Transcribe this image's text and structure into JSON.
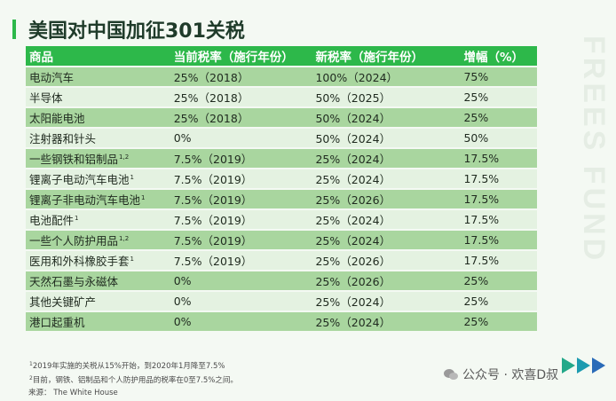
{
  "title": "美国对中国加征301关税",
  "watermark": "FREES FUND",
  "table": {
    "headers": [
      "商品",
      "当前税率（施行年份）",
      "新税率（施行年份）",
      "增幅（%）"
    ],
    "rows": [
      {
        "item": "电动汽车",
        "sup": "",
        "current": "25%（2018）",
        "new": "100%（2024）",
        "increase": "75%"
      },
      {
        "item": "半导体",
        "sup": "",
        "current": "25%（2018）",
        "new": "50%（2025）",
        "increase": "25%"
      },
      {
        "item": "太阳能电池",
        "sup": "",
        "current": "25%（2018）",
        "new": "50%（2024）",
        "increase": "25%"
      },
      {
        "item": "注射器和针头",
        "sup": "",
        "current": "0%",
        "new": "50%（2024）",
        "increase": "50%"
      },
      {
        "item": "一些钢铁和铝制品",
        "sup": "1,2",
        "current": "7.5%（2019）",
        "new": "25%（2024）",
        "increase": "17.5%"
      },
      {
        "item": "锂离子电动汽车电池",
        "sup": "1",
        "current": "7.5%（2019）",
        "new": "25%（2024）",
        "increase": "17.5%"
      },
      {
        "item": "锂离子非电动汽车电池",
        "sup": "1",
        "current": "7.5%（2019）",
        "new": "25%（2026）",
        "increase": "17.5%"
      },
      {
        "item": "电池配件",
        "sup": "1",
        "current": "7.5%（2019）",
        "new": "25%（2024）",
        "increase": "17.5%"
      },
      {
        "item": "一些个人防护用品",
        "sup": "1,2",
        "current": "7.5%（2019）",
        "new": "25%（2024）",
        "increase": "17.5%"
      },
      {
        "item": "医用和外科橡胶手套",
        "sup": "1",
        "current": "7.5%（2019）",
        "new": "25%（2026）",
        "increase": "17.5%"
      },
      {
        "item": "天然石墨与永磁体",
        "sup": "",
        "current": "0%",
        "new": "25%（2026）",
        "increase": "25%"
      },
      {
        "item": "其他关键矿产",
        "sup": "",
        "current": "0%",
        "new": "25%（2024）",
        "increase": "25%"
      },
      {
        "item": "港口起重机",
        "sup": "",
        "current": "0%",
        "new": "25%（2024）",
        "increase": "25%"
      }
    ]
  },
  "notes": [
    {
      "sup": "1",
      "text": "2019年实施的关税从15%开始，到2020年1月降至7.5%"
    },
    {
      "sup": "2",
      "text": "目前，钢铁、铝制品和个人防护用品的税率在0至7.5%之间。"
    },
    {
      "sup": "",
      "text": "来源： The White House"
    }
  ],
  "wechat_label": "公众号 · 欢喜D叔",
  "colors": {
    "accent": "#2db84a",
    "row_dark": "#a9d69f",
    "row_light": "#e4f2e1"
  }
}
